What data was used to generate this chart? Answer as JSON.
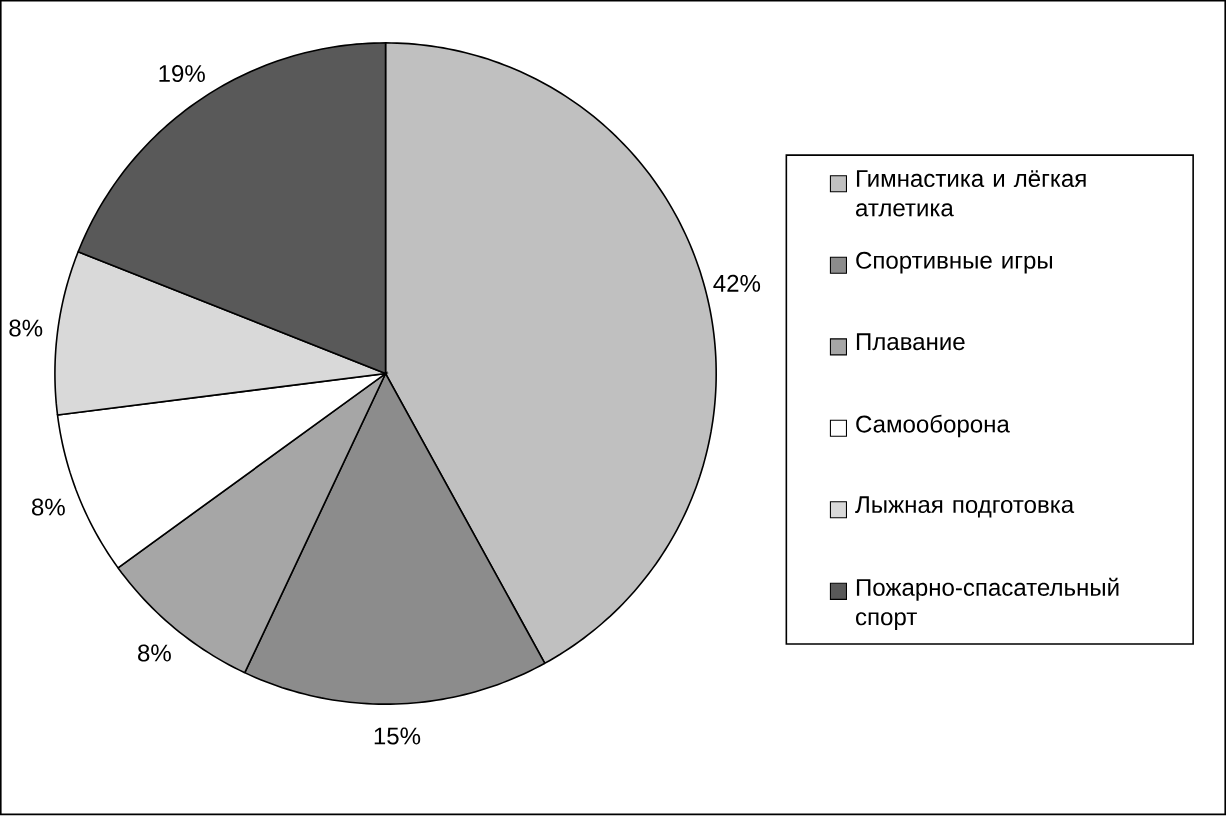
{
  "chart_data": {
    "type": "pie",
    "categories": [
      "Гимнастика и лёгкая атлетика",
      "Спортивные игры",
      "Плавание",
      "Самооборона",
      "Лыжная подготовка",
      "Пожарно-спасательный спорт"
    ],
    "values": [
      42,
      15,
      8,
      8,
      8,
      19
    ],
    "colors": [
      "#c0c0c0",
      "#8c8c8c",
      "#a6a6a6",
      "#ffffff",
      "#d9d9d9",
      "#595959"
    ],
    "value_labels": [
      "42%",
      "15%",
      "8%",
      "8%",
      "8%",
      "19%"
    ],
    "legend": "right"
  }
}
